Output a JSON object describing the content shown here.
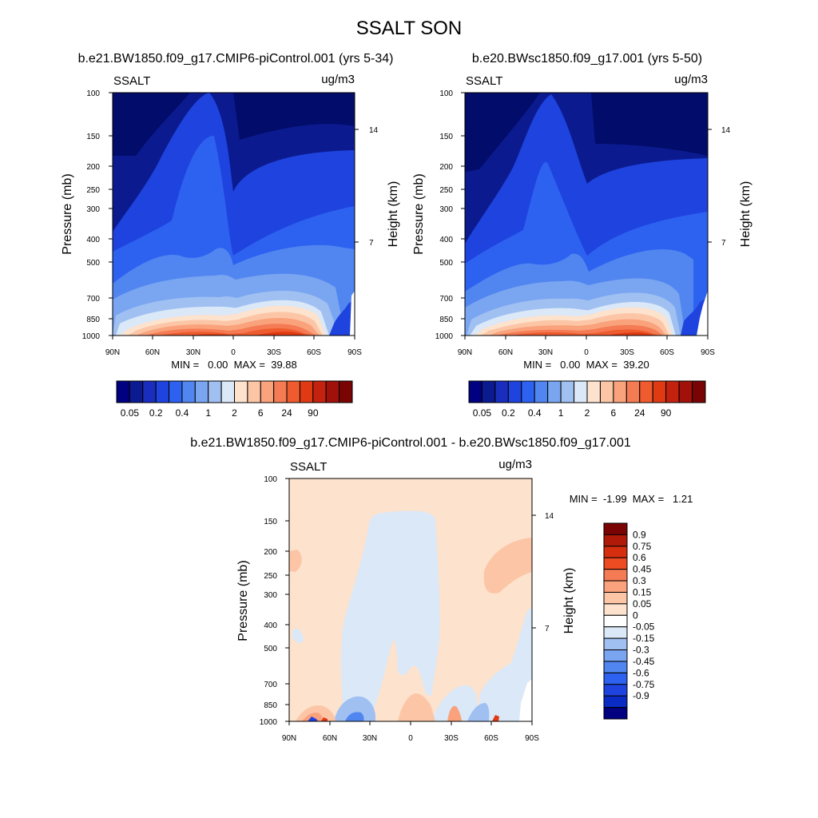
{
  "figure_title": "SSALT SON",
  "colors": {
    "positive_scale": [
      "#fde2cd",
      "#fcc6a6",
      "#f9a27c",
      "#f47b53",
      "#ee5b2e",
      "#e03a13",
      "#c2220e",
      "#a11109",
      "#7a0404"
    ],
    "negative_scale": [
      "#dae8f8",
      "#c0d6f5",
      "#a0c0f2",
      "#7aa5f0",
      "#5186f1",
      "#2d62f0",
      "#1f43df",
      "#1a2ebd",
      "#0b1b8f",
      "#020c6a",
      "#000080"
    ]
  },
  "chart_data": [
    {
      "type": "heatmap",
      "panel": "left",
      "title": "b.e21.BW1850.f09_g17.CMIP6-piControl.001 (yrs 5-34)",
      "variable_label": "SSALT",
      "units_label": "ug/m3",
      "ylabel": "Pressure (mb)",
      "ylabel_right": "Height (km)",
      "x_ticks": [
        "90N",
        "60N",
        "30N",
        "0",
        "30S",
        "60S",
        "90S"
      ],
      "y_ticks": [
        "100",
        "150",
        "200",
        "250",
        "300",
        "400",
        "500",
        "700",
        "850",
        "1000"
      ],
      "y_ticks_right": [
        "14",
        "7"
      ],
      "ylim": [
        1000,
        100
      ],
      "stats_text": "MIN =   0.00  MAX =  39.88",
      "min": 0.0,
      "max": 39.88,
      "colorbar_labels": [
        "0.05",
        "0.2",
        "0.4",
        "1",
        "2",
        "6",
        "24",
        "90"
      ],
      "colorbar_colors": [
        "#000080",
        "#0b1b8f",
        "#1a2ebd",
        "#1f43df",
        "#2d62f0",
        "#5186f1",
        "#7aa5f0",
        "#a0c0f2",
        "#dae8f8",
        "#fde2cd",
        "#fcc6a6",
        "#f9a27c",
        "#f47b53",
        "#ee5b2e",
        "#e03a13",
        "#c2220e",
        "#a11109",
        "#7a0404"
      ]
    },
    {
      "type": "heatmap",
      "panel": "right",
      "title": "b.e20.BWsc1850.f09_g17.001 (yrs 5-50)",
      "variable_label": "SSALT",
      "units_label": "ug/m3",
      "ylabel": "Pressure (mb)",
      "ylabel_right": "Height (km)",
      "x_ticks": [
        "90N",
        "60N",
        "30N",
        "0",
        "30S",
        "60S",
        "90S"
      ],
      "y_ticks": [
        "100",
        "150",
        "200",
        "250",
        "300",
        "400",
        "500",
        "700",
        "850",
        "1000"
      ],
      "y_ticks_right": [
        "14",
        "7"
      ],
      "ylim": [
        1000,
        100
      ],
      "stats_text": "MIN =   0.00  MAX =  39.20",
      "min": 0.0,
      "max": 39.2,
      "colorbar_labels": [
        "0.05",
        "0.2",
        "0.4",
        "1",
        "2",
        "6",
        "24",
        "90"
      ],
      "colorbar_colors": [
        "#000080",
        "#0b1b8f",
        "#1a2ebd",
        "#1f43df",
        "#2d62f0",
        "#5186f1",
        "#7aa5f0",
        "#a0c0f2",
        "#dae8f8",
        "#fde2cd",
        "#fcc6a6",
        "#f9a27c",
        "#f47b53",
        "#ee5b2e",
        "#e03a13",
        "#c2220e",
        "#a11109",
        "#7a0404"
      ]
    },
    {
      "type": "heatmap",
      "panel": "difference",
      "title": "b.e21.BW1850.f09_g17.CMIP6-piControl.001 - b.e20.BWsc1850.f09_g17.001",
      "variable_label": "SSALT",
      "units_label": "ug/m3",
      "ylabel": "Pressure (mb)",
      "ylabel_right": "Height (km)",
      "x_ticks": [
        "90N",
        "60N",
        "30N",
        "0",
        "30S",
        "60S",
        "90S"
      ],
      "y_ticks": [
        "100",
        "150",
        "200",
        "250",
        "300",
        "400",
        "500",
        "700",
        "850",
        "1000"
      ],
      "y_ticks_right": [
        "14",
        "7"
      ],
      "ylim": [
        1000,
        100
      ],
      "stats_text": "MIN =  -1.99  MAX =   1.21",
      "min": -1.99,
      "max": 1.21,
      "colorbar_labels": [
        "0.9",
        "0.75",
        "0.6",
        "0.45",
        "0.3",
        "0.15",
        "0.05",
        "0",
        "-0.05",
        "-0.15",
        "-0.3",
        "-0.45",
        "-0.6",
        "-0.75",
        "-0.9"
      ],
      "colorbar_colors": [
        "#7a0404",
        "#b01a08",
        "#d52f10",
        "#ed4b22",
        "#f47b53",
        "#f9a27c",
        "#fcc6a6",
        "#fde2cd",
        "#ffffff",
        "#dae8f8",
        "#a0c0f2",
        "#7aa5f0",
        "#5186f1",
        "#2d62f0",
        "#1f43df",
        "#0b2cc4",
        "#000080"
      ]
    }
  ]
}
